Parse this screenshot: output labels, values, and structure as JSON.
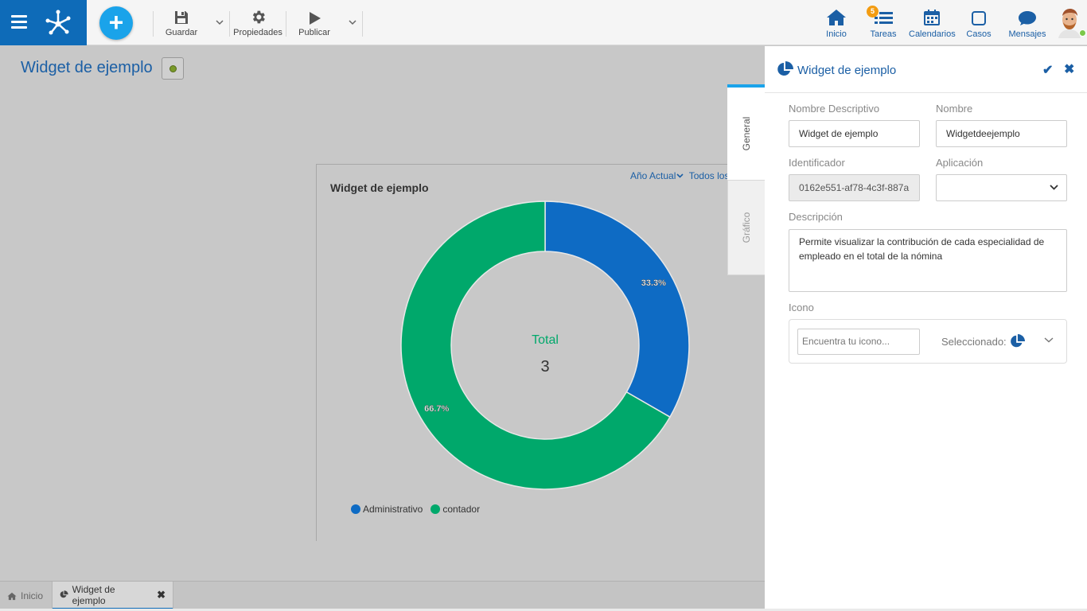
{
  "toolbar": {
    "save_label": "Guardar",
    "properties_label": "Propiedades",
    "publish_label": "Publicar"
  },
  "nav": {
    "home_label": "Inicio",
    "tasks_label": "Tareas",
    "tasks_badge": "5",
    "calendars_label": "Calendarios",
    "cases_label": "Casos",
    "messages_label": "Mensajes"
  },
  "page": {
    "title": "Widget de ejemplo"
  },
  "widget": {
    "filter_period": "Año Actual",
    "filter_scope": "Todos los",
    "title": "Widget de ejemplo"
  },
  "chart_data": {
    "type": "pie",
    "categories": [
      "Administrativo",
      "contador"
    ],
    "values": [
      33.3,
      66.7
    ],
    "data_labels": [
      "33.3%",
      "66.7%"
    ],
    "colors": [
      "#0e6bc4",
      "#00a86b"
    ],
    "center_label": "Total",
    "center_value": "3",
    "legend": [
      "Administrativo",
      "contador"
    ],
    "legend_placement": "bottom-left"
  },
  "side_tabs": {
    "general": "General",
    "grafico": "Gráfico"
  },
  "panel": {
    "title": "Widget de ejemplo",
    "nombre_descriptivo_label": "Nombre Descriptivo",
    "nombre_descriptivo_value": "Widget de ejemplo",
    "nombre_label": "Nombre",
    "nombre_value": "Widgetdeejemplo",
    "identificador_label": "Identificador",
    "identificador_value": "0162e551-af78-4c3f-887a",
    "aplicacion_label": "Aplicación",
    "aplicacion_value": "",
    "descripcion_label": "Descripción",
    "descripcion_value": "Permite visualizar la contribución de cada especialidad de empleado en el total de la nómina",
    "icono_label": "Icono",
    "icono_search_placeholder": "Encuentra tu icono...",
    "icono_selected_label": "Seleccionado:"
  },
  "bottom_tabs": {
    "home": "Inicio",
    "active": "Widget de ejemplo"
  }
}
